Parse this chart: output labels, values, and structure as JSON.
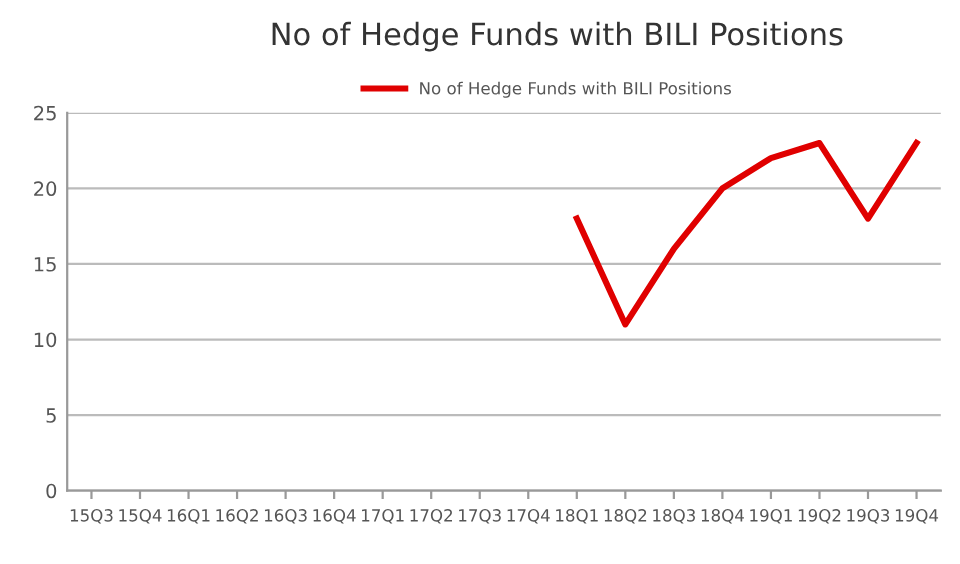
{
  "chart_data": {
    "type": "line",
    "title": "No of Hedge Funds with BILI Positions",
    "categories": [
      "15Q3",
      "15Q4",
      "16Q1",
      "16Q2",
      "16Q3",
      "16Q4",
      "17Q1",
      "17Q2",
      "17Q3",
      "17Q4",
      "18Q1",
      "18Q2",
      "18Q3",
      "18Q4",
      "19Q1",
      "19Q2",
      "19Q3",
      "19Q4"
    ],
    "series": [
      {
        "name": "No of Hedge Funds with BILI Positions",
        "color": "#e00000",
        "values": [
          null,
          null,
          null,
          null,
          null,
          null,
          null,
          null,
          null,
          null,
          18,
          11,
          16,
          20,
          22,
          23,
          18,
          23
        ]
      }
    ],
    "ylim": [
      0,
      25
    ],
    "yticks": [
      0,
      5,
      10,
      15,
      20,
      25
    ],
    "grid": "y",
    "legend": "top",
    "marker": "none",
    "line_style": "solid"
  }
}
